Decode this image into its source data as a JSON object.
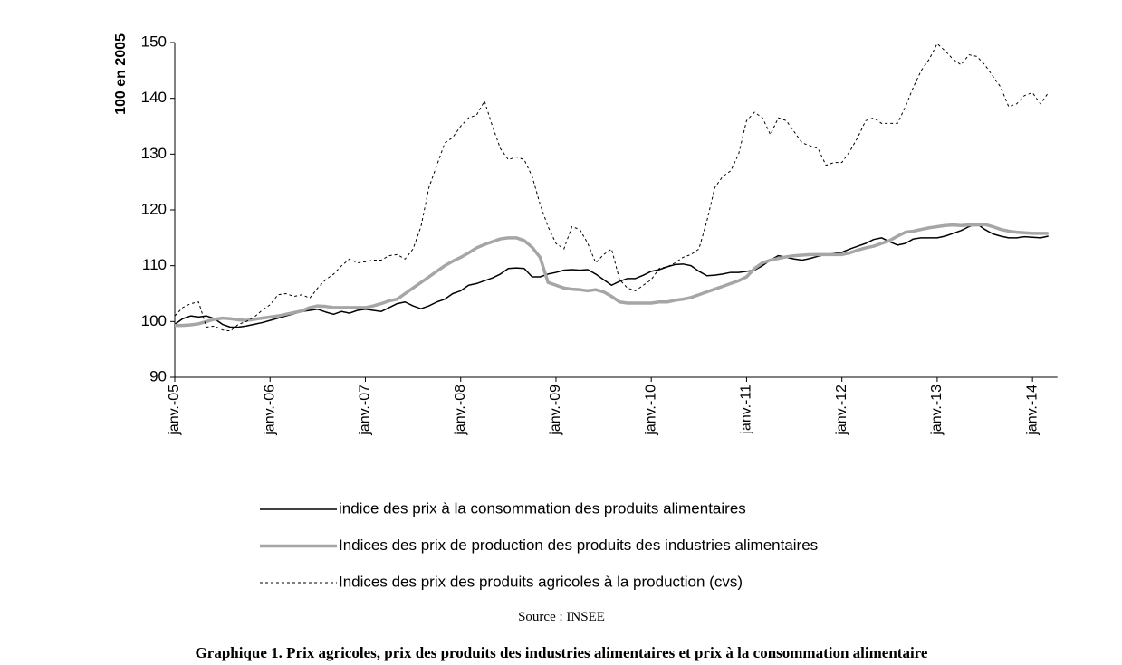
{
  "chart_data": {
    "type": "line",
    "y_label": "100 en 2005",
    "categories": [
      "janv.-05",
      null,
      null,
      null,
      null,
      null,
      null,
      null,
      null,
      null,
      null,
      null,
      "janv.-06",
      null,
      null,
      null,
      null,
      null,
      null,
      null,
      null,
      null,
      null,
      null,
      "janv.-07",
      null,
      null,
      null,
      null,
      null,
      null,
      null,
      null,
      null,
      null,
      null,
      "janv.-08",
      null,
      null,
      null,
      null,
      null,
      null,
      null,
      null,
      null,
      null,
      null,
      "janv.-09",
      null,
      null,
      null,
      null,
      null,
      null,
      null,
      null,
      null,
      null,
      null,
      "janv.-10",
      null,
      null,
      null,
      null,
      null,
      null,
      null,
      null,
      null,
      null,
      null,
      "janv.-11",
      null,
      null,
      null,
      null,
      null,
      null,
      null,
      null,
      null,
      null,
      null,
      "janv.-12",
      null,
      null,
      null,
      null,
      null,
      null,
      null,
      null,
      null,
      null,
      null,
      "janv.-13",
      null,
      null,
      null,
      null,
      null,
      null,
      null,
      null,
      null,
      null,
      null,
      "janv.-14",
      null,
      null
    ],
    "series": [
      {
        "name": "indice des prix à la consommation des produits alimentaires",
        "color": "#000000",
        "line_width": 1.5,
        "line_style": "solid",
        "values": [
          99.5,
          100.5,
          101,
          100.8,
          101,
          100.5,
          99.5,
          99,
          99,
          99.2,
          99.5,
          99.8,
          100.2,
          100.6,
          101,
          101.4,
          101.8,
          102,
          102.2,
          101.7,
          101.3,
          101.8,
          101.5,
          102,
          102.2,
          102,
          101.8,
          102.5,
          103.2,
          103.5,
          102.8,
          102.3,
          102.8,
          103.5,
          104,
          105,
          105.5,
          106.5,
          106.8,
          107.3,
          107.8,
          108.5,
          109.5,
          109.6,
          109.5,
          108,
          108,
          108.5,
          108.8,
          109.2,
          109.3,
          109.2,
          109.3,
          108.5,
          107.5,
          106.5,
          107.2,
          107.7,
          107.7,
          108.3,
          109,
          109.3,
          109.8,
          110.2,
          110.3,
          110,
          109,
          108.2,
          108.3,
          108.5,
          108.8,
          108.8,
          109,
          109.2,
          110,
          111,
          111.8,
          111.5,
          111.2,
          111,
          111.3,
          111.7,
          112,
          112.2,
          112.4,
          113,
          113.5,
          114,
          114.7,
          115,
          114.3,
          113.7,
          114,
          114.8,
          115,
          115,
          115,
          115.3,
          115.8,
          116.3,
          117,
          117.5,
          116.5,
          115.7,
          115.3,
          115,
          115,
          115.2,
          115.1,
          115,
          115.3
        ]
      },
      {
        "name": "Indices des prix de production des produits des industries alimentaires",
        "color": "#a6a6a6",
        "line_width": 3.5,
        "line_style": "solid",
        "values": [
          99.3,
          99.3,
          99.4,
          99.6,
          100,
          100.4,
          100.6,
          100.5,
          100.3,
          100.2,
          100.4,
          100.6,
          100.8,
          101,
          101.3,
          101.6,
          101.9,
          102.5,
          102.8,
          102.7,
          102.5,
          102.5,
          102.5,
          102.5,
          102.5,
          102.8,
          103.2,
          103.7,
          104,
          105,
          106,
          107,
          108,
          109,
          110,
          110.8,
          111.5,
          112.3,
          113.2,
          113.8,
          114.3,
          114.8,
          115,
          115,
          114.5,
          113.3,
          111.5,
          107,
          106.5,
          106,
          105.8,
          105.7,
          105.5,
          105.7,
          105.3,
          104.5,
          103.5,
          103.3,
          103.3,
          103.3,
          103.3,
          103.5,
          103.5,
          103.8,
          104,
          104.3,
          104.8,
          105.3,
          105.8,
          106.3,
          106.8,
          107.3,
          108,
          109.5,
          110.5,
          111,
          111.3,
          111.6,
          111.8,
          111.9,
          112,
          112,
          112,
          112,
          112,
          112.3,
          112.8,
          113.2,
          113.5,
          114,
          114.5,
          115.3,
          116,
          116.2,
          116.5,
          116.8,
          117,
          117.2,
          117.3,
          117.2,
          117.3,
          117.3,
          117.4,
          117,
          116.5,
          116.2,
          116,
          115.9,
          115.8,
          115.8,
          115.8
        ]
      },
      {
        "name": "Indices des prix des produits agricoles à la production (cvs)",
        "color": "#000000",
        "line_width": 1,
        "line_style": "dashed",
        "values": [
          101,
          102.5,
          103.2,
          103.5,
          99,
          99.2,
          98.5,
          98.3,
          99.5,
          100,
          100.8,
          102,
          103,
          104.8,
          105,
          104.5,
          104.8,
          104.2,
          106,
          107.5,
          108.5,
          110,
          111.2,
          110.5,
          110.7,
          111,
          111,
          111.8,
          112,
          111.2,
          113,
          117,
          124,
          128,
          132,
          133,
          135,
          136.5,
          137,
          139.5,
          135,
          131,
          129,
          129.5,
          129,
          126,
          121,
          117,
          114,
          113,
          117,
          116.5,
          114,
          110.5,
          112,
          113,
          107.5,
          106,
          105.5,
          106.5,
          107.5,
          109.5,
          109.8,
          110.5,
          111.5,
          112,
          113,
          118,
          124,
          126,
          127,
          130,
          136,
          137.5,
          136.5,
          133.5,
          136.5,
          136,
          134,
          132,
          131.5,
          131,
          128,
          128.5,
          128.5,
          130.5,
          133,
          136,
          136.5,
          135.5,
          135.5,
          135.5,
          138.5,
          142,
          145,
          147,
          149.8,
          148.5,
          147,
          146,
          147.8,
          147.5,
          146,
          144,
          142,
          138.5,
          139,
          140.5,
          141,
          139,
          141
        ]
      }
    ],
    "ylim": [
      90,
      150
    ],
    "yticks": [
      90,
      100,
      110,
      120,
      130,
      140,
      150
    ],
    "grid": false,
    "source": "Source : INSEE",
    "caption": "Graphique 1. Prix agricoles, prix des produits des industries alimentaires et prix à la consommation alimentaire"
  }
}
